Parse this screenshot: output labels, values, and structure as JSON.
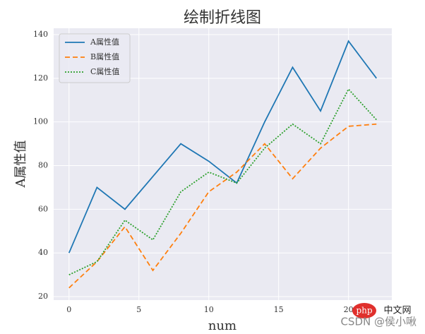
{
  "chart_data": {
    "type": "line",
    "title": "绘制折线图",
    "x_label": "num",
    "y_label": "A属性值",
    "x": [
      0,
      2,
      4,
      6,
      8,
      10,
      12,
      14,
      16,
      18,
      20,
      22
    ],
    "series": [
      {
        "name": "A属性值",
        "color": "#1f77b4",
        "linestyle": "solid",
        "values": [
          40,
          70,
          60,
          75,
          90,
          82,
          72,
          100,
          125,
          105,
          137,
          120
        ]
      },
      {
        "name": "B属性值",
        "color": "#ff7f0e",
        "linestyle": "dashed",
        "values": [
          24,
          36,
          52,
          32,
          49,
          68,
          77,
          90,
          74,
          88,
          98,
          99
        ]
      },
      {
        "name": "C属性值",
        "color": "#2ca02c",
        "linestyle": "dotted",
        "values": [
          30,
          36,
          55,
          46,
          68,
          77,
          72,
          88,
          99,
          90,
          115,
          101
        ]
      }
    ],
    "xlim": [
      -1.1,
      23.1
    ],
    "ylim": [
      18.4,
      142.9
    ],
    "xticks": [
      0,
      5,
      10,
      15,
      20
    ],
    "yticks": [
      20,
      40,
      60,
      80,
      100,
      120,
      140
    ],
    "grid": true,
    "legend": "upper-left"
  },
  "watermark": {
    "logo": "php",
    "site": "中文网",
    "credit": "CSDN @侯小啾"
  }
}
